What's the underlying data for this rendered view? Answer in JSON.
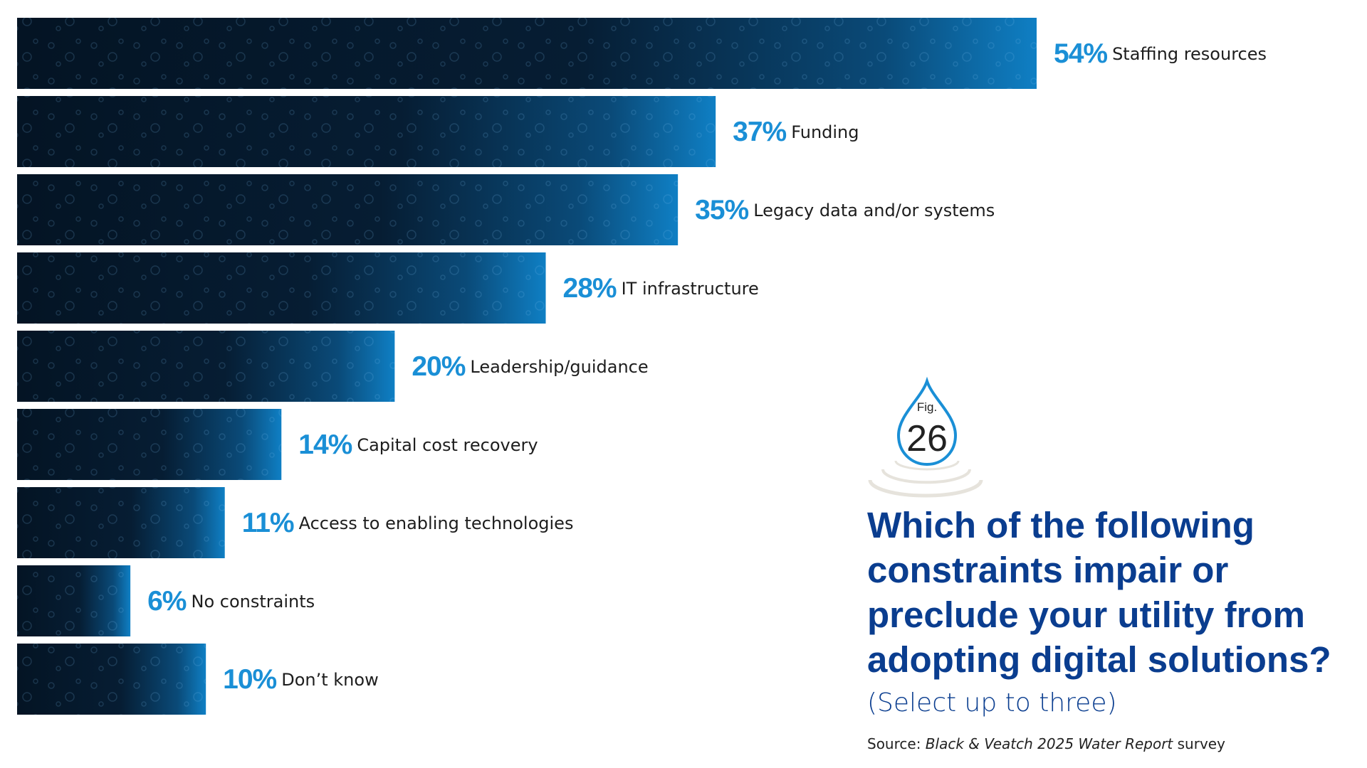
{
  "chart_data": {
    "type": "bar",
    "orientation": "horizontal",
    "categories": [
      "Staffing resources",
      "Funding",
      "Legacy data and/or systems",
      "IT infrastructure",
      "Leadership/guidance",
      "Capital cost recovery",
      "Access to enabling technologies",
      "No constraints",
      "Don’t know"
    ],
    "values": [
      54,
      37,
      35,
      28,
      20,
      14,
      11,
      6,
      10
    ],
    "value_labels": [
      "54%",
      "37%",
      "35%",
      "28%",
      "20%",
      "14%",
      "11%",
      "6%",
      "10%"
    ],
    "unit": "%",
    "xlim": [
      0,
      54
    ],
    "grid": false,
    "legend": "none"
  },
  "figure": {
    "fig_label": "Fig.",
    "fig_number": "26"
  },
  "question": {
    "title": "Which of the following constraints impair or preclude your utility from adopting digital solutions?",
    "instruction": "(Select up to three)"
  },
  "source": {
    "prefix": "Source: ",
    "publication": "Black & Veatch 2025 Water Report",
    "suffix": " survey"
  },
  "colors": {
    "value_label": "#1a8fd6",
    "title": "#0a3d8f",
    "bar_dark": "#041424",
    "bar_accent": "#0f7fc4",
    "ripple": "#e6e3dc"
  }
}
